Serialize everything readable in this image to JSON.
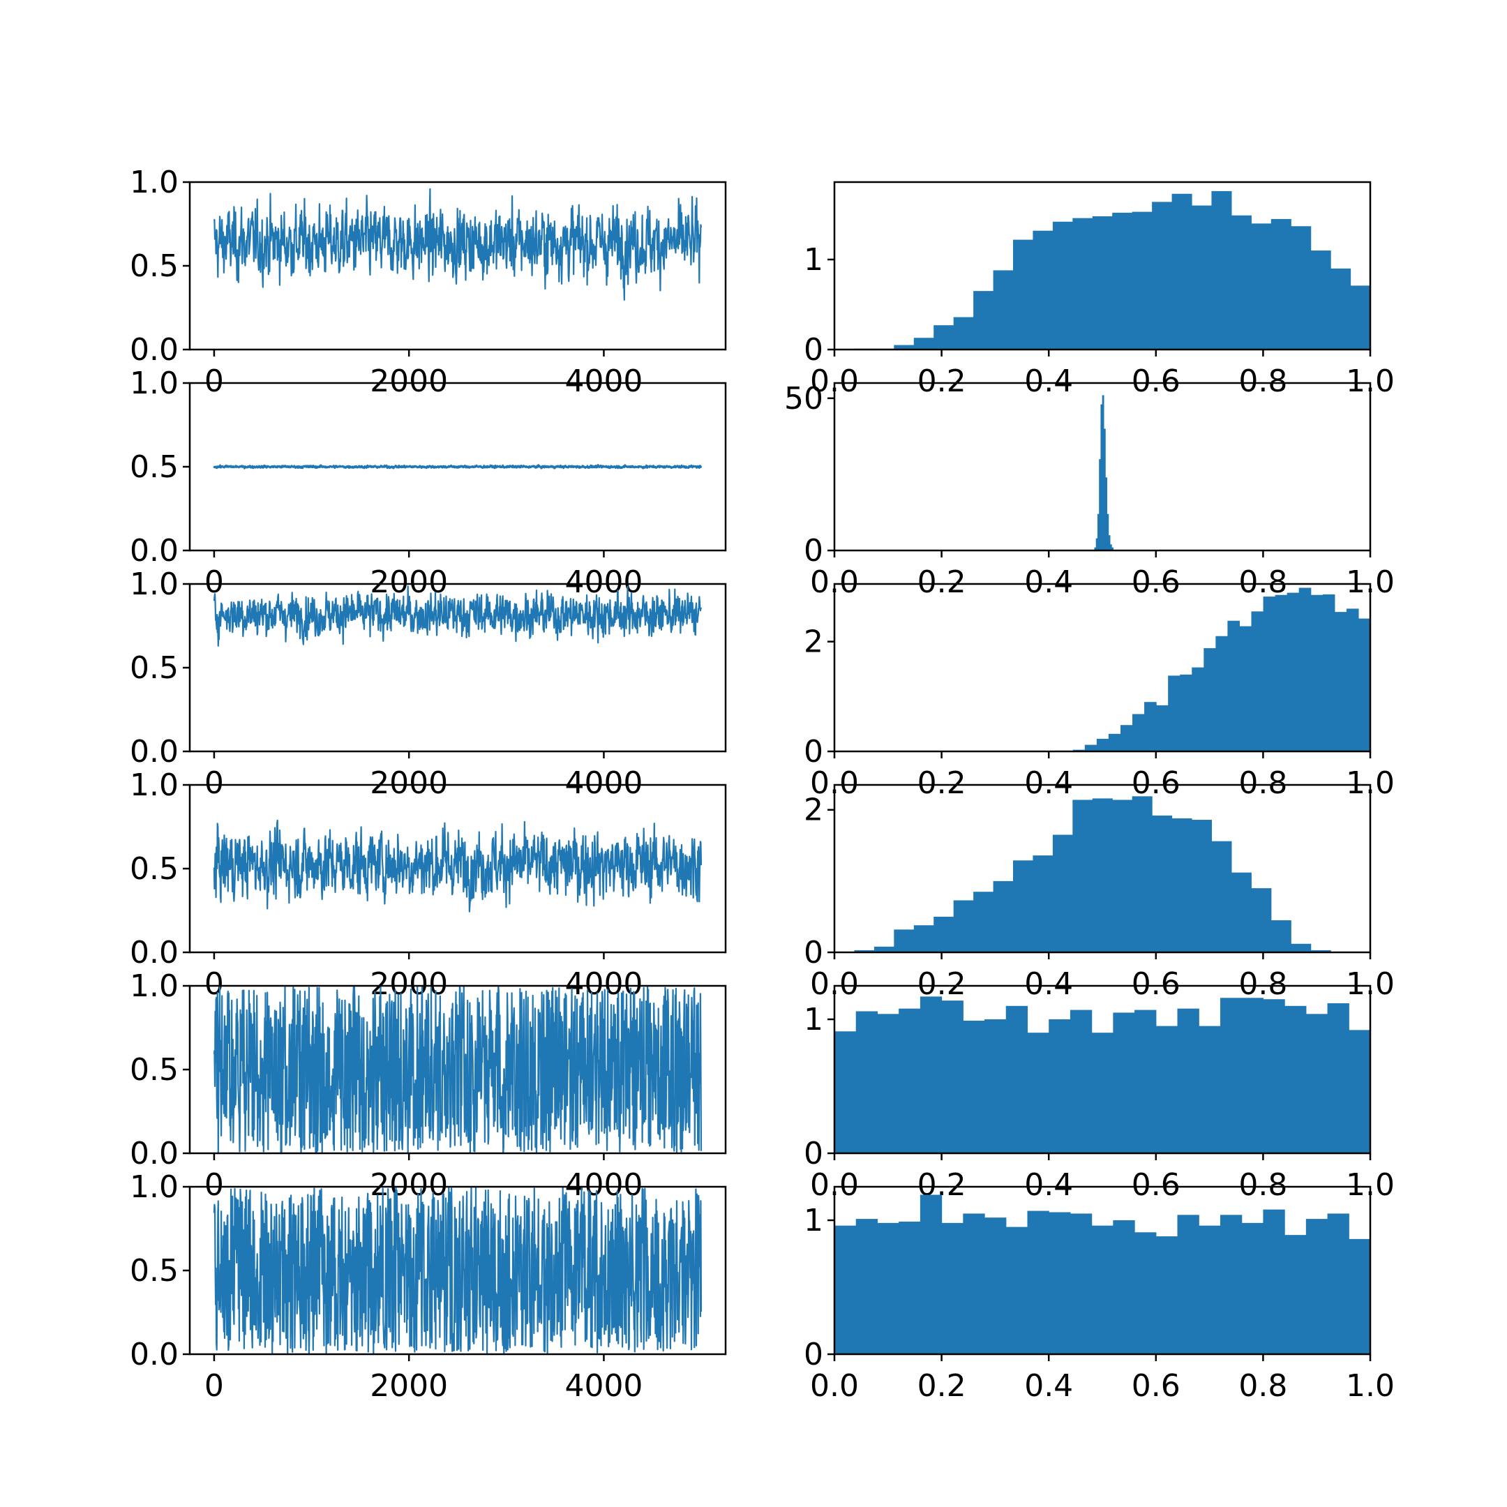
{
  "figure": {
    "background": "#ffffff",
    "series_color": "#1f77b4"
  },
  "chart_data": [
    {
      "type": "line",
      "row": 0,
      "xlim": [
        -250,
        5250
      ],
      "ylim": [
        0.0,
        1.0
      ],
      "xticks": [
        0,
        2000,
        4000
      ],
      "xtick_labels": [
        "0",
        "2000",
        "4000"
      ],
      "yticks": [
        0.0,
        0.5,
        1.0
      ],
      "ytick_labels": [
        "0.0",
        "0.5",
        "1.0"
      ],
      "trace": {
        "n_samples": 5000,
        "center": 0.64,
        "low": 0.03,
        "high": 1.0
      }
    },
    {
      "type": "bar",
      "row": 0,
      "xlim": [
        0.0,
        1.0
      ],
      "ylim": [
        0,
        1.86
      ],
      "xticks": [
        0.0,
        0.2,
        0.4,
        0.6,
        0.8,
        1.0
      ],
      "xtick_labels": [
        "0.0",
        "0.2",
        "0.4",
        "0.6",
        "0.8",
        "1.0"
      ],
      "yticks": [
        0,
        1
      ],
      "ytick_labels": [
        "0",
        "1"
      ],
      "bins": {
        "start": 0.0,
        "end": 1.0,
        "densities": [
          0.0,
          0.01,
          0.01,
          0.05,
          0.13,
          0.27,
          0.36,
          0.65,
          0.88,
          1.22,
          1.32,
          1.42,
          1.46,
          1.48,
          1.52,
          1.53,
          1.64,
          1.73,
          1.6,
          1.76,
          1.49,
          1.4,
          1.45,
          1.37,
          1.1,
          0.9,
          0.71
        ]
      }
    },
    {
      "type": "line",
      "row": 1,
      "xlim": [
        -250,
        5250
      ],
      "ylim": [
        0.0,
        1.0
      ],
      "xticks": [
        0,
        2000,
        4000
      ],
      "xtick_labels": [
        "0",
        "2000",
        "4000"
      ],
      "yticks": [
        0.0,
        0.5,
        1.0
      ],
      "ytick_labels": [
        "0.0",
        "0.5",
        "1.0"
      ],
      "trace": {
        "n_samples": 5000,
        "center": 0.5,
        "low": 0.485,
        "high": 0.515
      }
    },
    {
      "type": "bar",
      "row": 1,
      "xlim": [
        0.0,
        1.0
      ],
      "ylim": [
        0,
        55
      ],
      "xticks": [
        0.0,
        0.2,
        0.4,
        0.6,
        0.8,
        1.0
      ],
      "xtick_labels": [
        "0.0",
        "0.2",
        "0.4",
        "0.6",
        "0.8",
        "1.0"
      ],
      "yticks": [
        0,
        50
      ],
      "ytick_labels": [
        "0",
        "50"
      ],
      "bins": {
        "start": 0.485,
        "end": 0.52,
        "densities": [
          1,
          4,
          12,
          30,
          48,
          51,
          40,
          24,
          12,
          5,
          2,
          1
        ]
      }
    },
    {
      "type": "line",
      "row": 2,
      "xlim": [
        -250,
        5250
      ],
      "ylim": [
        0.0,
        1.0
      ],
      "xticks": [
        0,
        2000,
        4000
      ],
      "xtick_labels": [
        "0",
        "2000",
        "4000"
      ],
      "yticks": [
        0.0,
        0.5,
        1.0
      ],
      "ytick_labels": [
        "0.0",
        "0.5",
        "1.0"
      ],
      "trace": {
        "n_samples": 5000,
        "center": 0.82,
        "low": 0.4,
        "high": 1.0
      }
    },
    {
      "type": "bar",
      "row": 2,
      "xlim": [
        0.0,
        1.0
      ],
      "ylim": [
        0,
        3.05
      ],
      "xticks": [
        0.0,
        0.2,
        0.4,
        0.6,
        0.8,
        1.0
      ],
      "xtick_labels": [
        "0.0",
        "0.2",
        "0.4",
        "0.6",
        "0.8",
        "1.0"
      ],
      "yticks": [
        0,
        2
      ],
      "ytick_labels": [
        "0",
        "2"
      ],
      "bins": {
        "start": 0.445,
        "end": 1.0,
        "densities": [
          0.03,
          0.12,
          0.23,
          0.32,
          0.48,
          0.68,
          0.9,
          0.84,
          1.38,
          1.4,
          1.53,
          1.88,
          2.1,
          2.38,
          2.28,
          2.55,
          2.82,
          2.85,
          2.89,
          2.98,
          2.85,
          2.86,
          2.54,
          2.6,
          2.42
        ]
      }
    },
    {
      "type": "line",
      "row": 3,
      "xlim": [
        -250,
        5250
      ],
      "ylim": [
        0.0,
        1.0
      ],
      "xticks": [
        0,
        2000,
        4000
      ],
      "xtick_labels": [
        "0",
        "2000",
        "4000"
      ],
      "yticks": [
        0.0,
        0.5,
        1.0
      ],
      "ytick_labels": [
        "0.0",
        "0.5",
        "1.0"
      ],
      "trace": {
        "n_samples": 5000,
        "center": 0.53,
        "low": 0.0,
        "high": 0.94
      }
    },
    {
      "type": "bar",
      "row": 3,
      "xlim": [
        0.0,
        1.0
      ],
      "ylim": [
        0,
        2.35
      ],
      "xticks": [
        0.0,
        0.2,
        0.4,
        0.6,
        0.8,
        1.0
      ],
      "xtick_labels": [
        "0.0",
        "0.2",
        "0.4",
        "0.6",
        "0.8",
        "1.0"
      ],
      "yticks": [
        0,
        2
      ],
      "ytick_labels": [
        "0",
        "2"
      ],
      "bins": {
        "start": 0.0,
        "end": 1.0,
        "densities": [
          0.0,
          0.03,
          0.08,
          0.32,
          0.38,
          0.5,
          0.73,
          0.85,
          1.0,
          1.29,
          1.36,
          1.65,
          2.14,
          2.16,
          2.14,
          2.19,
          1.92,
          1.88,
          1.86,
          1.56,
          1.12,
          0.9,
          0.45,
          0.12,
          0.03,
          0.0,
          0.0
        ]
      }
    },
    {
      "type": "line",
      "row": 4,
      "xlim": [
        -250,
        5250
      ],
      "ylim": [
        0.0,
        1.0
      ],
      "xticks": [
        0,
        2000,
        4000
      ],
      "xtick_labels": [
        "0",
        "2000",
        "4000"
      ],
      "yticks": [
        0.0,
        0.5,
        1.0
      ],
      "ytick_labels": [
        "0.0",
        "0.5",
        "1.0"
      ],
      "trace": {
        "n_samples": 5000,
        "center": 0.5,
        "low": 0.0,
        "high": 1.0
      }
    },
    {
      "type": "bar",
      "row": 4,
      "xlim": [
        0.0,
        1.0
      ],
      "ylim": [
        0,
        1.25
      ],
      "xticks": [
        0.0,
        0.2,
        0.4,
        0.6,
        0.8,
        1.0
      ],
      "xtick_labels": [
        "0.0",
        "0.2",
        "0.4",
        "0.6",
        "0.8",
        "1.0"
      ],
      "yticks": [
        0,
        1
      ],
      "ytick_labels": [
        "0",
        "1"
      ],
      "bins": {
        "start": 0.0,
        "end": 1.0,
        "densities": [
          0.91,
          1.06,
          1.04,
          1.08,
          1.17,
          1.14,
          0.99,
          1.0,
          1.1,
          0.9,
          1.0,
          1.07,
          0.9,
          1.05,
          1.07,
          0.95,
          1.08,
          0.95,
          1.16,
          1.16,
          1.15,
          1.1,
          1.04,
          1.12,
          0.92
        ]
      }
    },
    {
      "type": "line",
      "row": 5,
      "xlim": [
        -250,
        5250
      ],
      "ylim": [
        0.0,
        1.0
      ],
      "xticks": [
        0,
        2000,
        4000
      ],
      "xtick_labels": [
        "0",
        "2000",
        "4000"
      ],
      "yticks": [
        0.0,
        0.5,
        1.0
      ],
      "ytick_labels": [
        "0.0",
        "0.5",
        "1.0"
      ],
      "trace": {
        "n_samples": 5000,
        "center": 0.5,
        "low": 0.0,
        "high": 1.0
      }
    },
    {
      "type": "bar",
      "row": 5,
      "xlim": [
        0.0,
        1.0
      ],
      "ylim": [
        0,
        1.25
      ],
      "xticks": [
        0.0,
        0.2,
        0.4,
        0.6,
        0.8,
        1.0
      ],
      "xtick_labels": [
        "0.0",
        "0.2",
        "0.4",
        "0.6",
        "0.8",
        "1.0"
      ],
      "yticks": [
        0,
        1
      ],
      "ytick_labels": [
        "0",
        "1"
      ],
      "bins": {
        "start": 0.0,
        "end": 1.0,
        "densities": [
          0.96,
          1.01,
          0.98,
          0.99,
          1.19,
          0.98,
          1.05,
          1.02,
          0.95,
          1.07,
          1.06,
          1.05,
          0.96,
          1.0,
          0.91,
          0.88,
          1.04,
          0.96,
          1.04,
          0.98,
          1.08,
          0.89,
          1.01,
          1.05,
          0.86
        ]
      }
    }
  ]
}
